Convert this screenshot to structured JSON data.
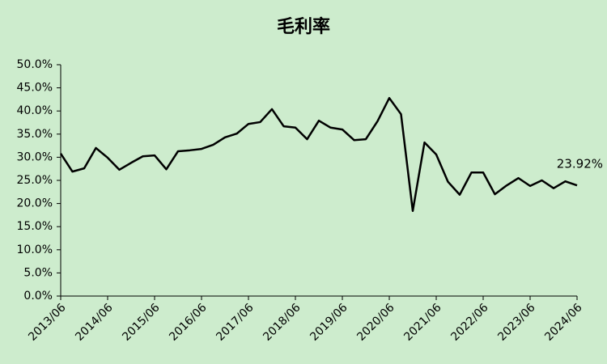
{
  "chart_data": {
    "type": "line",
    "title": "毛利率",
    "categories": [
      "2013/06",
      null,
      null,
      null,
      "2014/06",
      null,
      null,
      null,
      "2015/06",
      null,
      null,
      null,
      "2016/06",
      null,
      null,
      null,
      "2017/06",
      null,
      null,
      null,
      "2018/06",
      null,
      null,
      null,
      "2019/06",
      null,
      null,
      null,
      "2020/06",
      null,
      null,
      null,
      "2021/06",
      null,
      null,
      null,
      "2022/06",
      null,
      null,
      null,
      "2023/06",
      null,
      null,
      null,
      "2024/06"
    ],
    "series": [
      {
        "name": "毛利率",
        "color": "#000000",
        "values": [
          30.8,
          26.9,
          27.6,
          32.0,
          29.9,
          27.3,
          28.8,
          30.2,
          30.4,
          27.4,
          31.3,
          31.5,
          31.8,
          32.7,
          34.3,
          35.1,
          37.2,
          37.6,
          40.4,
          36.7,
          36.4,
          33.9,
          37.9,
          36.4,
          36.0,
          33.7,
          33.9,
          37.8,
          42.8,
          39.3,
          18.4,
          33.2,
          30.6,
          24.7,
          21.9,
          26.7,
          26.7,
          22.0,
          23.9,
          25.5,
          23.8,
          25.0,
          23.3,
          24.8,
          23.92
        ],
        "value_labels": [
          null,
          null,
          null,
          null,
          null,
          null,
          null,
          null,
          null,
          null,
          null,
          null,
          null,
          null,
          null,
          null,
          null,
          null,
          null,
          null,
          null,
          null,
          null,
          null,
          null,
          null,
          null,
          null,
          null,
          null,
          null,
          null,
          null,
          null,
          null,
          null,
          null,
          null,
          null,
          null,
          null,
          null,
          null,
          null,
          "23.92%"
        ]
      }
    ],
    "ylim": [
      0,
      50
    ],
    "yticks": [
      {
        "value": 0,
        "label": "0.0%"
      },
      {
        "value": 5,
        "label": "5.0%"
      },
      {
        "value": 10,
        "label": "10.0%"
      },
      {
        "value": 15,
        "label": "15.0%"
      },
      {
        "value": 20,
        "label": "20.0%"
      },
      {
        "value": 25,
        "label": "25.0%"
      },
      {
        "value": 30,
        "label": "30.0%"
      },
      {
        "value": 35,
        "label": "35.0%"
      },
      {
        "value": 40,
        "label": "40.0%"
      },
      {
        "value": 45,
        "label": "45.0%"
      },
      {
        "value": 50,
        "label": "50.0%"
      }
    ],
    "grid": false
  }
}
